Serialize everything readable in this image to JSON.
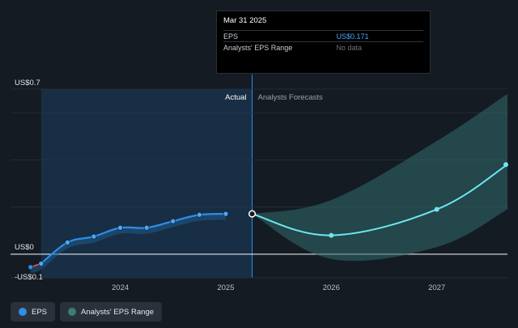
{
  "tooltip": {
    "date": "Mar 31 2025",
    "rows": [
      {
        "label": "EPS",
        "value": "US$0.171"
      },
      {
        "label": "Analysts' EPS Range",
        "value": "No data"
      }
    ]
  },
  "legend": {
    "items": [
      {
        "label": "EPS",
        "color": "#2e8ee8"
      },
      {
        "label": "Analysts' EPS Range",
        "color": "#3a7d7a"
      }
    ]
  },
  "chart_data": {
    "type": "line",
    "y_ticks": [
      {
        "value": 0.7,
        "label": "US$0.7"
      },
      {
        "value": 0,
        "label": "US$0"
      },
      {
        "value": -0.1,
        "label": "-US$0.1"
      }
    ],
    "x_ticks": [
      {
        "value": 2024.0,
        "label": "2024"
      },
      {
        "value": 2025.0,
        "label": "2025"
      },
      {
        "value": 2026.0,
        "label": "2026"
      },
      {
        "value": 2027.0,
        "label": "2027"
      }
    ],
    "ylim": [
      -0.1,
      0.7
    ],
    "xlim": [
      2022.96,
      2027.67
    ],
    "section_labels": {
      "actual": "Actual",
      "forecast": "Analysts Forecasts"
    },
    "actual_region": [
      2023.25,
      2025.25
    ],
    "series": [
      {
        "name": "EPS",
        "color": "#2e8ee8",
        "points": [
          {
            "x": 2023.15,
            "y": -0.055
          },
          {
            "x": 2023.25,
            "y": -0.04
          },
          {
            "x": 2023.5,
            "y": 0.05
          },
          {
            "x": 2023.75,
            "y": 0.075
          },
          {
            "x": 2024.0,
            "y": 0.112
          },
          {
            "x": 2024.25,
            "y": 0.112
          },
          {
            "x": 2024.5,
            "y": 0.14
          },
          {
            "x": 2024.75,
            "y": 0.167
          },
          {
            "x": 2025.0,
            "y": 0.171
          }
        ]
      },
      {
        "name": "Forecast",
        "color": "#6ee6f0",
        "points": [
          {
            "x": 2025.25,
            "y": 0.171
          },
          {
            "x": 2026.0,
            "y": 0.08
          },
          {
            "x": 2027.0,
            "y": 0.19
          },
          {
            "x": 2027.67,
            "y": 0.38
          }
        ]
      }
    ],
    "forecast_range": {
      "x": [
        2025.25,
        2026.0,
        2027.0,
        2027.67
      ],
      "high": [
        0.171,
        0.23,
        0.48,
        0.68
      ],
      "low": [
        0.171,
        -0.02,
        0.03,
        0.19
      ]
    },
    "grid": true
  }
}
